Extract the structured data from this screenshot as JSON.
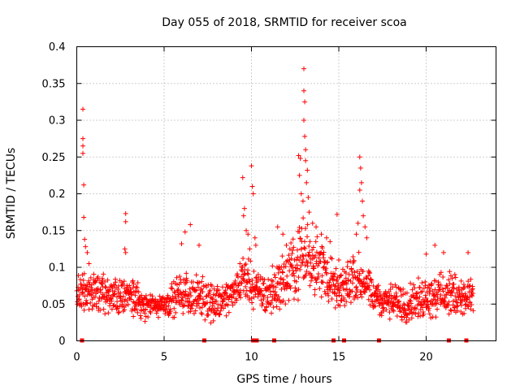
{
  "chart_data": {
    "type": "scatter",
    "title": "Day 055 of 2018, SRMTID for receiver scoa",
    "xlabel": "GPS time / hours",
    "ylabel": "SRMTID / TECUs",
    "xlim": [
      0,
      24
    ],
    "ylim": [
      0,
      0.4
    ],
    "xticks": [
      "0",
      "5",
      "10",
      "15",
      "20"
    ],
    "yticks": [
      "0",
      "0.05",
      "0.1",
      "0.15",
      "0.2",
      "0.25",
      "0.3",
      "0.35",
      "0.4"
    ],
    "grid": true,
    "marker": "+",
    "color": "#ff0000",
    "series": [
      {
        "name": "SRMTID",
        "envelope": [
          {
            "t": 0.0,
            "low": 0.04,
            "high": 0.09
          },
          {
            "t": 1.0,
            "low": 0.03,
            "high": 0.1
          },
          {
            "t": 2.0,
            "low": 0.03,
            "high": 0.09
          },
          {
            "t": 3.0,
            "low": 0.03,
            "high": 0.09
          },
          {
            "t": 4.0,
            "low": 0.025,
            "high": 0.07
          },
          {
            "t": 5.0,
            "low": 0.03,
            "high": 0.07
          },
          {
            "t": 6.0,
            "low": 0.03,
            "high": 0.1
          },
          {
            "t": 7.0,
            "low": 0.03,
            "high": 0.09
          },
          {
            "t": 8.0,
            "low": 0.02,
            "high": 0.085
          },
          {
            "t": 9.0,
            "low": 0.04,
            "high": 0.09
          },
          {
            "t": 9.5,
            "low": 0.05,
            "high": 0.13
          },
          {
            "t": 10.2,
            "low": 0.04,
            "high": 0.1
          },
          {
            "t": 11.0,
            "low": 0.03,
            "high": 0.1
          },
          {
            "t": 12.0,
            "low": 0.04,
            "high": 0.13
          },
          {
            "t": 13.0,
            "low": 0.06,
            "high": 0.18
          },
          {
            "t": 14.0,
            "low": 0.05,
            "high": 0.15
          },
          {
            "t": 15.0,
            "low": 0.03,
            "high": 0.1
          },
          {
            "t": 16.0,
            "low": 0.05,
            "high": 0.13
          },
          {
            "t": 17.0,
            "low": 0.03,
            "high": 0.09
          },
          {
            "t": 18.0,
            "low": 0.025,
            "high": 0.08
          },
          {
            "t": 19.0,
            "low": 0.02,
            "high": 0.085
          },
          {
            "t": 20.0,
            "low": 0.03,
            "high": 0.09
          },
          {
            "t": 21.0,
            "low": 0.03,
            "high": 0.1
          },
          {
            "t": 22.0,
            "low": 0.03,
            "high": 0.09
          },
          {
            "t": 22.7,
            "low": 0.03,
            "high": 0.09
          }
        ],
        "highlights": [
          [
            0.35,
            0.315
          ],
          [
            0.35,
            0.275
          ],
          [
            0.35,
            0.265
          ],
          [
            0.35,
            0.255
          ],
          [
            0.4,
            0.212
          ],
          [
            0.4,
            0.168
          ],
          [
            0.45,
            0.138
          ],
          [
            0.5,
            0.128
          ],
          [
            0.6,
            0.12
          ],
          [
            0.7,
            0.105
          ],
          [
            2.8,
            0.173
          ],
          [
            2.8,
            0.162
          ],
          [
            2.75,
            0.125
          ],
          [
            2.8,
            0.12
          ],
          [
            6.0,
            0.132
          ],
          [
            6.2,
            0.148
          ],
          [
            6.5,
            0.158
          ],
          [
            7.0,
            0.13
          ],
          [
            9.5,
            0.222
          ],
          [
            9.6,
            0.18
          ],
          [
            9.55,
            0.17
          ],
          [
            9.7,
            0.15
          ],
          [
            9.8,
            0.145
          ],
          [
            9.9,
            0.125
          ],
          [
            10.0,
            0.238
          ],
          [
            10.05,
            0.21
          ],
          [
            10.1,
            0.2
          ],
          [
            10.2,
            0.14
          ],
          [
            10.25,
            0.13
          ],
          [
            11.5,
            0.155
          ],
          [
            11.8,
            0.145
          ],
          [
            12.0,
            0.13
          ],
          [
            12.2,
            0.125
          ],
          [
            12.7,
            0.252
          ],
          [
            12.8,
            0.248
          ],
          [
            12.75,
            0.225
          ],
          [
            12.85,
            0.2
          ],
          [
            12.95,
            0.19
          ],
          [
            13.0,
            0.37
          ],
          [
            13.0,
            0.34
          ],
          [
            13.05,
            0.325
          ],
          [
            13.0,
            0.3
          ],
          [
            13.05,
            0.278
          ],
          [
            13.1,
            0.26
          ],
          [
            13.1,
            0.245
          ],
          [
            13.2,
            0.232
          ],
          [
            13.15,
            0.215
          ],
          [
            13.25,
            0.195
          ],
          [
            13.3,
            0.175
          ],
          [
            13.5,
            0.16
          ],
          [
            13.7,
            0.155
          ],
          [
            14.0,
            0.145
          ],
          [
            14.3,
            0.14
          ],
          [
            14.5,
            0.135
          ],
          [
            14.9,
            0.172
          ],
          [
            15.0,
            0.11
          ],
          [
            16.2,
            0.25
          ],
          [
            16.25,
            0.235
          ],
          [
            16.3,
            0.215
          ],
          [
            16.2,
            0.205
          ],
          [
            16.35,
            0.19
          ],
          [
            16.4,
            0.17
          ],
          [
            16.1,
            0.16
          ],
          [
            16.5,
            0.155
          ],
          [
            16.0,
            0.145
          ],
          [
            16.6,
            0.14
          ],
          [
            20.0,
            0.118
          ],
          [
            20.5,
            0.13
          ],
          [
            21.0,
            0.12
          ],
          [
            22.4,
            0.12
          ]
        ],
        "gap_markers": [
          0.3,
          7.3,
          10.1,
          10.3,
          11.3,
          14.7,
          15.3,
          17.3,
          21.3,
          22.3
        ]
      }
    ]
  }
}
